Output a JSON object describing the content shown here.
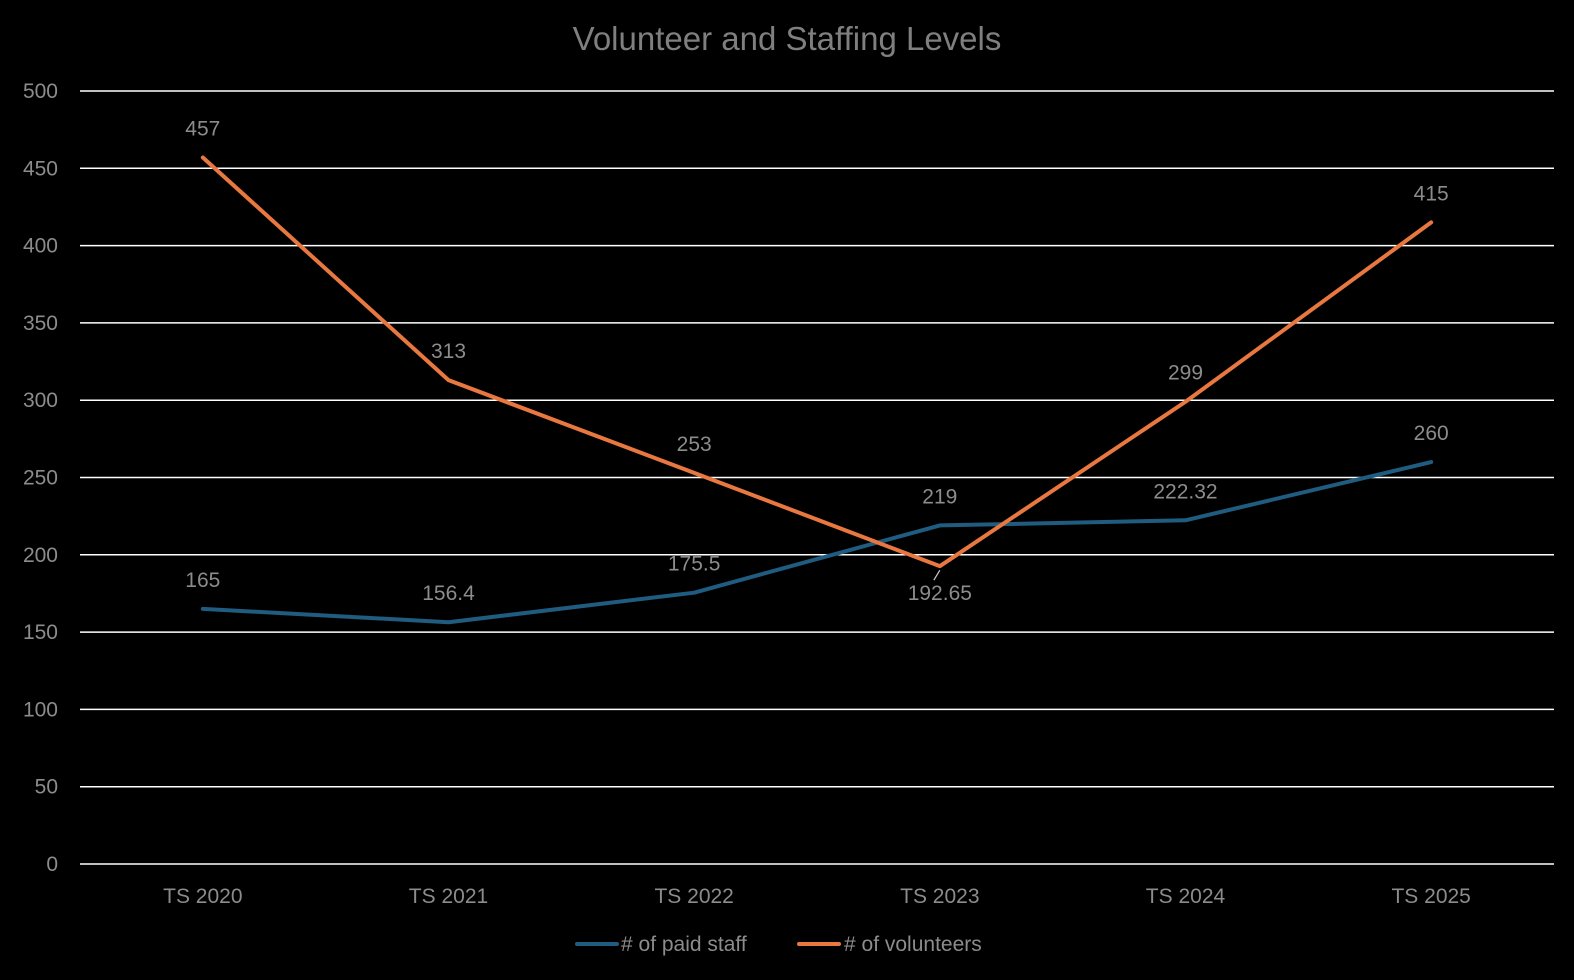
{
  "chart_data": {
    "type": "line",
    "title": "Volunteer and Staffing Levels",
    "xlabel": "",
    "ylabel": "",
    "categories": [
      "TS 2020",
      "TS 2021",
      "TS 2022",
      "TS 2023",
      "TS 2024",
      "TS 2025"
    ],
    "ylim": [
      0,
      500
    ],
    "yticks": [
      0,
      50,
      100,
      150,
      200,
      250,
      300,
      350,
      400,
      450,
      500
    ],
    "grid": true,
    "legend_position": "bottom",
    "series": [
      {
        "name": "# of paid staff",
        "color": "#1f5c7f",
        "values": [
          165,
          156.4,
          175.5,
          219,
          222.32,
          260
        ],
        "labels": [
          "165",
          "156.4",
          "175.5",
          "219",
          "222.32",
          "260"
        ]
      },
      {
        "name": "# of volunteers",
        "color": "#e8783f",
        "values": [
          457,
          313,
          253,
          192.65,
          299,
          415
        ],
        "labels": [
          "457",
          "313",
          "253",
          "192.65",
          "299",
          "415"
        ]
      }
    ]
  }
}
